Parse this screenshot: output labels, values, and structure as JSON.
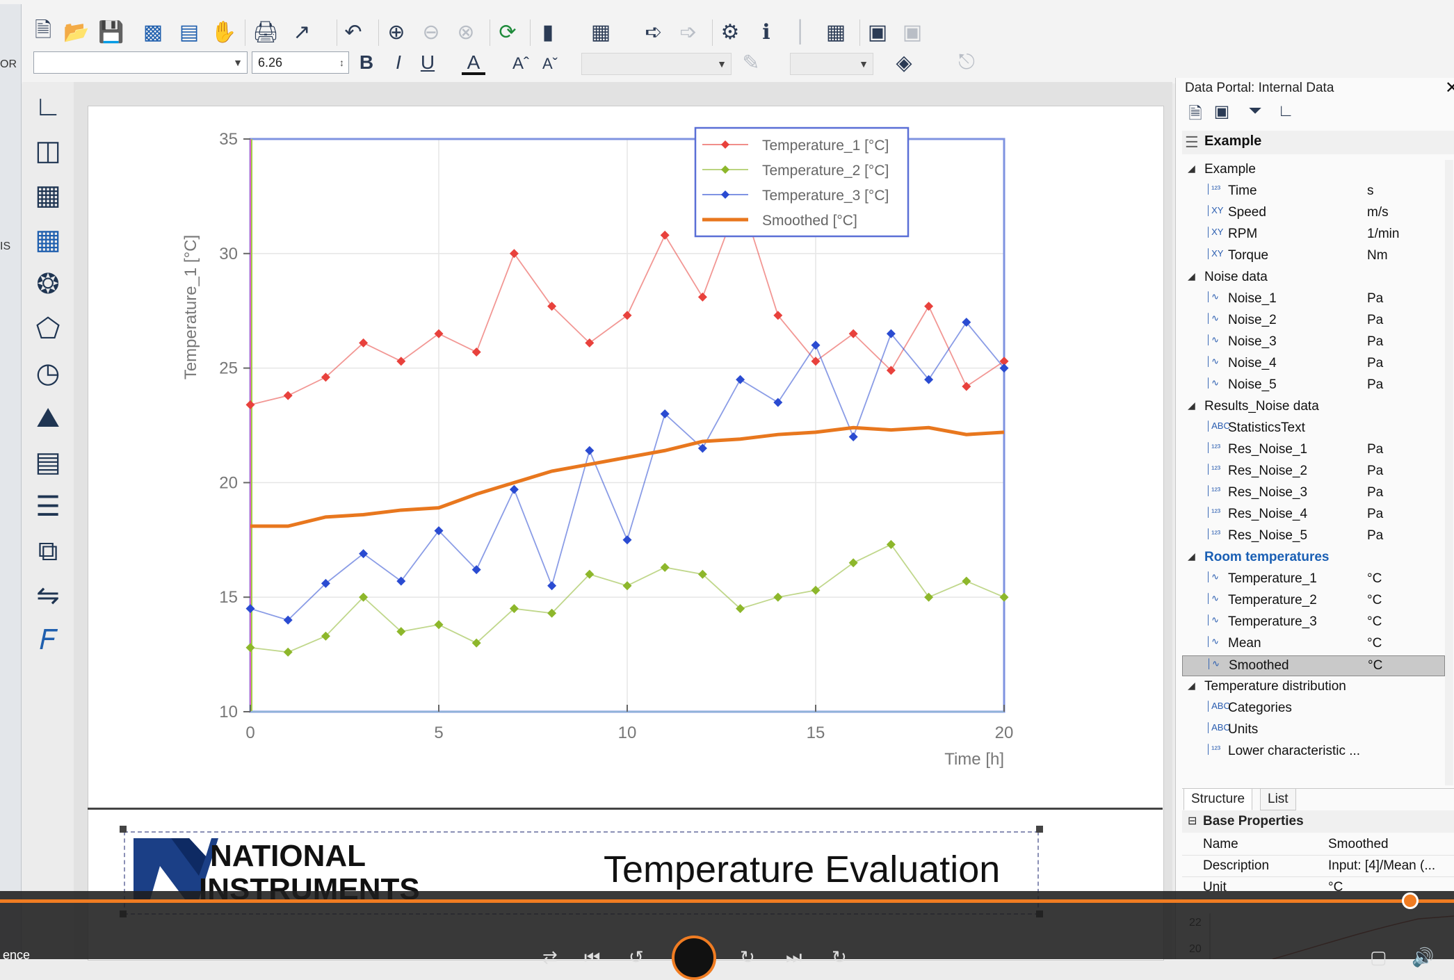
{
  "toolbar": {
    "font_name": "",
    "font_size": "6.26",
    "bold": "B",
    "italic": "I",
    "underline": "U",
    "font_color": "A",
    "grow_font": "Aˆ",
    "shrink_font": "Aˇ"
  },
  "left_strip": {
    "label_top": "OR",
    "label_mid": "IS"
  },
  "chart_data": {
    "type": "line",
    "xlabel": "Time [h]",
    "ylabel": "Temperature_1 [°C]",
    "xlim": [
      0,
      20
    ],
    "ylim": [
      10,
      35
    ],
    "x_ticks": [
      "0",
      "5",
      "10",
      "15",
      "20"
    ],
    "y_ticks": [
      "10",
      "15",
      "20",
      "25",
      "30",
      "35"
    ],
    "x": [
      0,
      1,
      2,
      3,
      4,
      5,
      6,
      7,
      8,
      9,
      10,
      11,
      12,
      13,
      14,
      15,
      16,
      17,
      18,
      19,
      20
    ],
    "legend_position": "top-right",
    "grid": true,
    "series": [
      {
        "name": "Temperature_1 [°C]",
        "color": "#e8413c",
        "marker": "diamond",
        "values": [
          23.4,
          23.8,
          24.6,
          26.1,
          25.3,
          26.5,
          25.7,
          30.0,
          27.7,
          26.1,
          27.3,
          30.8,
          28.1,
          32.5,
          27.3,
          25.3,
          26.5,
          24.9,
          27.7,
          24.2,
          25.3
        ]
      },
      {
        "name": "Temperature_2 [°C]",
        "color": "#8db72b",
        "marker": "diamond",
        "values": [
          12.8,
          12.6,
          13.3,
          15.0,
          13.5,
          13.8,
          13.0,
          14.5,
          14.3,
          16.0,
          15.5,
          16.3,
          16.0,
          14.5,
          15.0,
          15.3,
          16.5,
          17.3,
          15.0,
          15.7,
          15.0
        ]
      },
      {
        "name": "Temperature_3 [°C]",
        "color": "#2a4bd1",
        "marker": "diamond",
        "values": [
          14.5,
          14.0,
          15.6,
          16.9,
          15.7,
          17.9,
          16.2,
          19.7,
          15.5,
          21.4,
          17.5,
          23.0,
          21.5,
          24.5,
          23.5,
          26.0,
          22.0,
          26.5,
          24.5,
          27.0,
          25.0
        ]
      },
      {
        "name": "Smoothed [°C]",
        "color": "#e8771e",
        "marker": "none",
        "values": [
          18.1,
          18.1,
          18.5,
          18.6,
          18.8,
          18.9,
          19.5,
          20.0,
          20.5,
          20.8,
          21.1,
          21.4,
          21.8,
          21.9,
          22.1,
          22.2,
          22.4,
          22.3,
          22.4,
          22.1,
          22.2
        ]
      }
    ]
  },
  "report": {
    "logo_line1": "NATIONAL",
    "logo_line2": "INSTRUMENTS",
    "title": "Temperature Evaluation"
  },
  "portal": {
    "title": "Data Portal: Internal Data",
    "dataset": "Example",
    "groups": [
      {
        "name": "Example",
        "highlight": false,
        "channels": [
          {
            "icon": "123",
            "name": "Time",
            "unit": "s"
          },
          {
            "icon": "XY",
            "name": "Speed",
            "unit": "m/s"
          },
          {
            "icon": "XY",
            "name": "RPM",
            "unit": "1/min"
          },
          {
            "icon": "XY",
            "name": "Torque",
            "unit": "Nm"
          }
        ]
      },
      {
        "name": "Noise data",
        "highlight": false,
        "channels": [
          {
            "icon": "wave",
            "name": "Noise_1",
            "unit": "Pa"
          },
          {
            "icon": "wave",
            "name": "Noise_2",
            "unit": "Pa"
          },
          {
            "icon": "wave",
            "name": "Noise_3",
            "unit": "Pa"
          },
          {
            "icon": "wave",
            "name": "Noise_4",
            "unit": "Pa"
          },
          {
            "icon": "wave",
            "name": "Noise_5",
            "unit": "Pa"
          }
        ]
      },
      {
        "name": "Results_Noise data",
        "highlight": false,
        "channels": [
          {
            "icon": "ABC",
            "name": "StatisticsText",
            "unit": ""
          },
          {
            "icon": "123",
            "name": "Res_Noise_1",
            "unit": "Pa"
          },
          {
            "icon": "123",
            "name": "Res_Noise_2",
            "unit": "Pa"
          },
          {
            "icon": "123",
            "name": "Res_Noise_3",
            "unit": "Pa"
          },
          {
            "icon": "123",
            "name": "Res_Noise_4",
            "unit": "Pa"
          },
          {
            "icon": "123",
            "name": "Res_Noise_5",
            "unit": "Pa"
          }
        ]
      },
      {
        "name": "Room temperatures",
        "highlight": true,
        "channels": [
          {
            "icon": "wave",
            "name": "Temperature_1",
            "unit": "°C"
          },
          {
            "icon": "wave",
            "name": "Temperature_2",
            "unit": "°C"
          },
          {
            "icon": "wave",
            "name": "Temperature_3",
            "unit": "°C"
          },
          {
            "icon": "wave",
            "name": "Mean",
            "unit": "°C"
          },
          {
            "icon": "wave",
            "name": "Smoothed",
            "unit": "°C",
            "selected": true
          }
        ]
      },
      {
        "name": "Temperature distribution",
        "highlight": false,
        "channels": [
          {
            "icon": "ABC",
            "name": "Categories",
            "unit": ""
          },
          {
            "icon": "ABC",
            "name": "Units",
            "unit": ""
          },
          {
            "icon": "123",
            "name": "Lower characteristic ...",
            "unit": ""
          }
        ]
      }
    ],
    "tabs": [
      "Structure",
      "List"
    ],
    "props_header": "Base Properties",
    "properties": [
      {
        "key": "Name",
        "value": "Smoothed"
      },
      {
        "key": "Description",
        "value": "Input: [4]/Mean (..."
      },
      {
        "key": "Unit",
        "value": "°C"
      }
    ],
    "preview_ticks": [
      "22",
      "20"
    ]
  },
  "player": {
    "time": "ence",
    "progress": 0.97
  }
}
